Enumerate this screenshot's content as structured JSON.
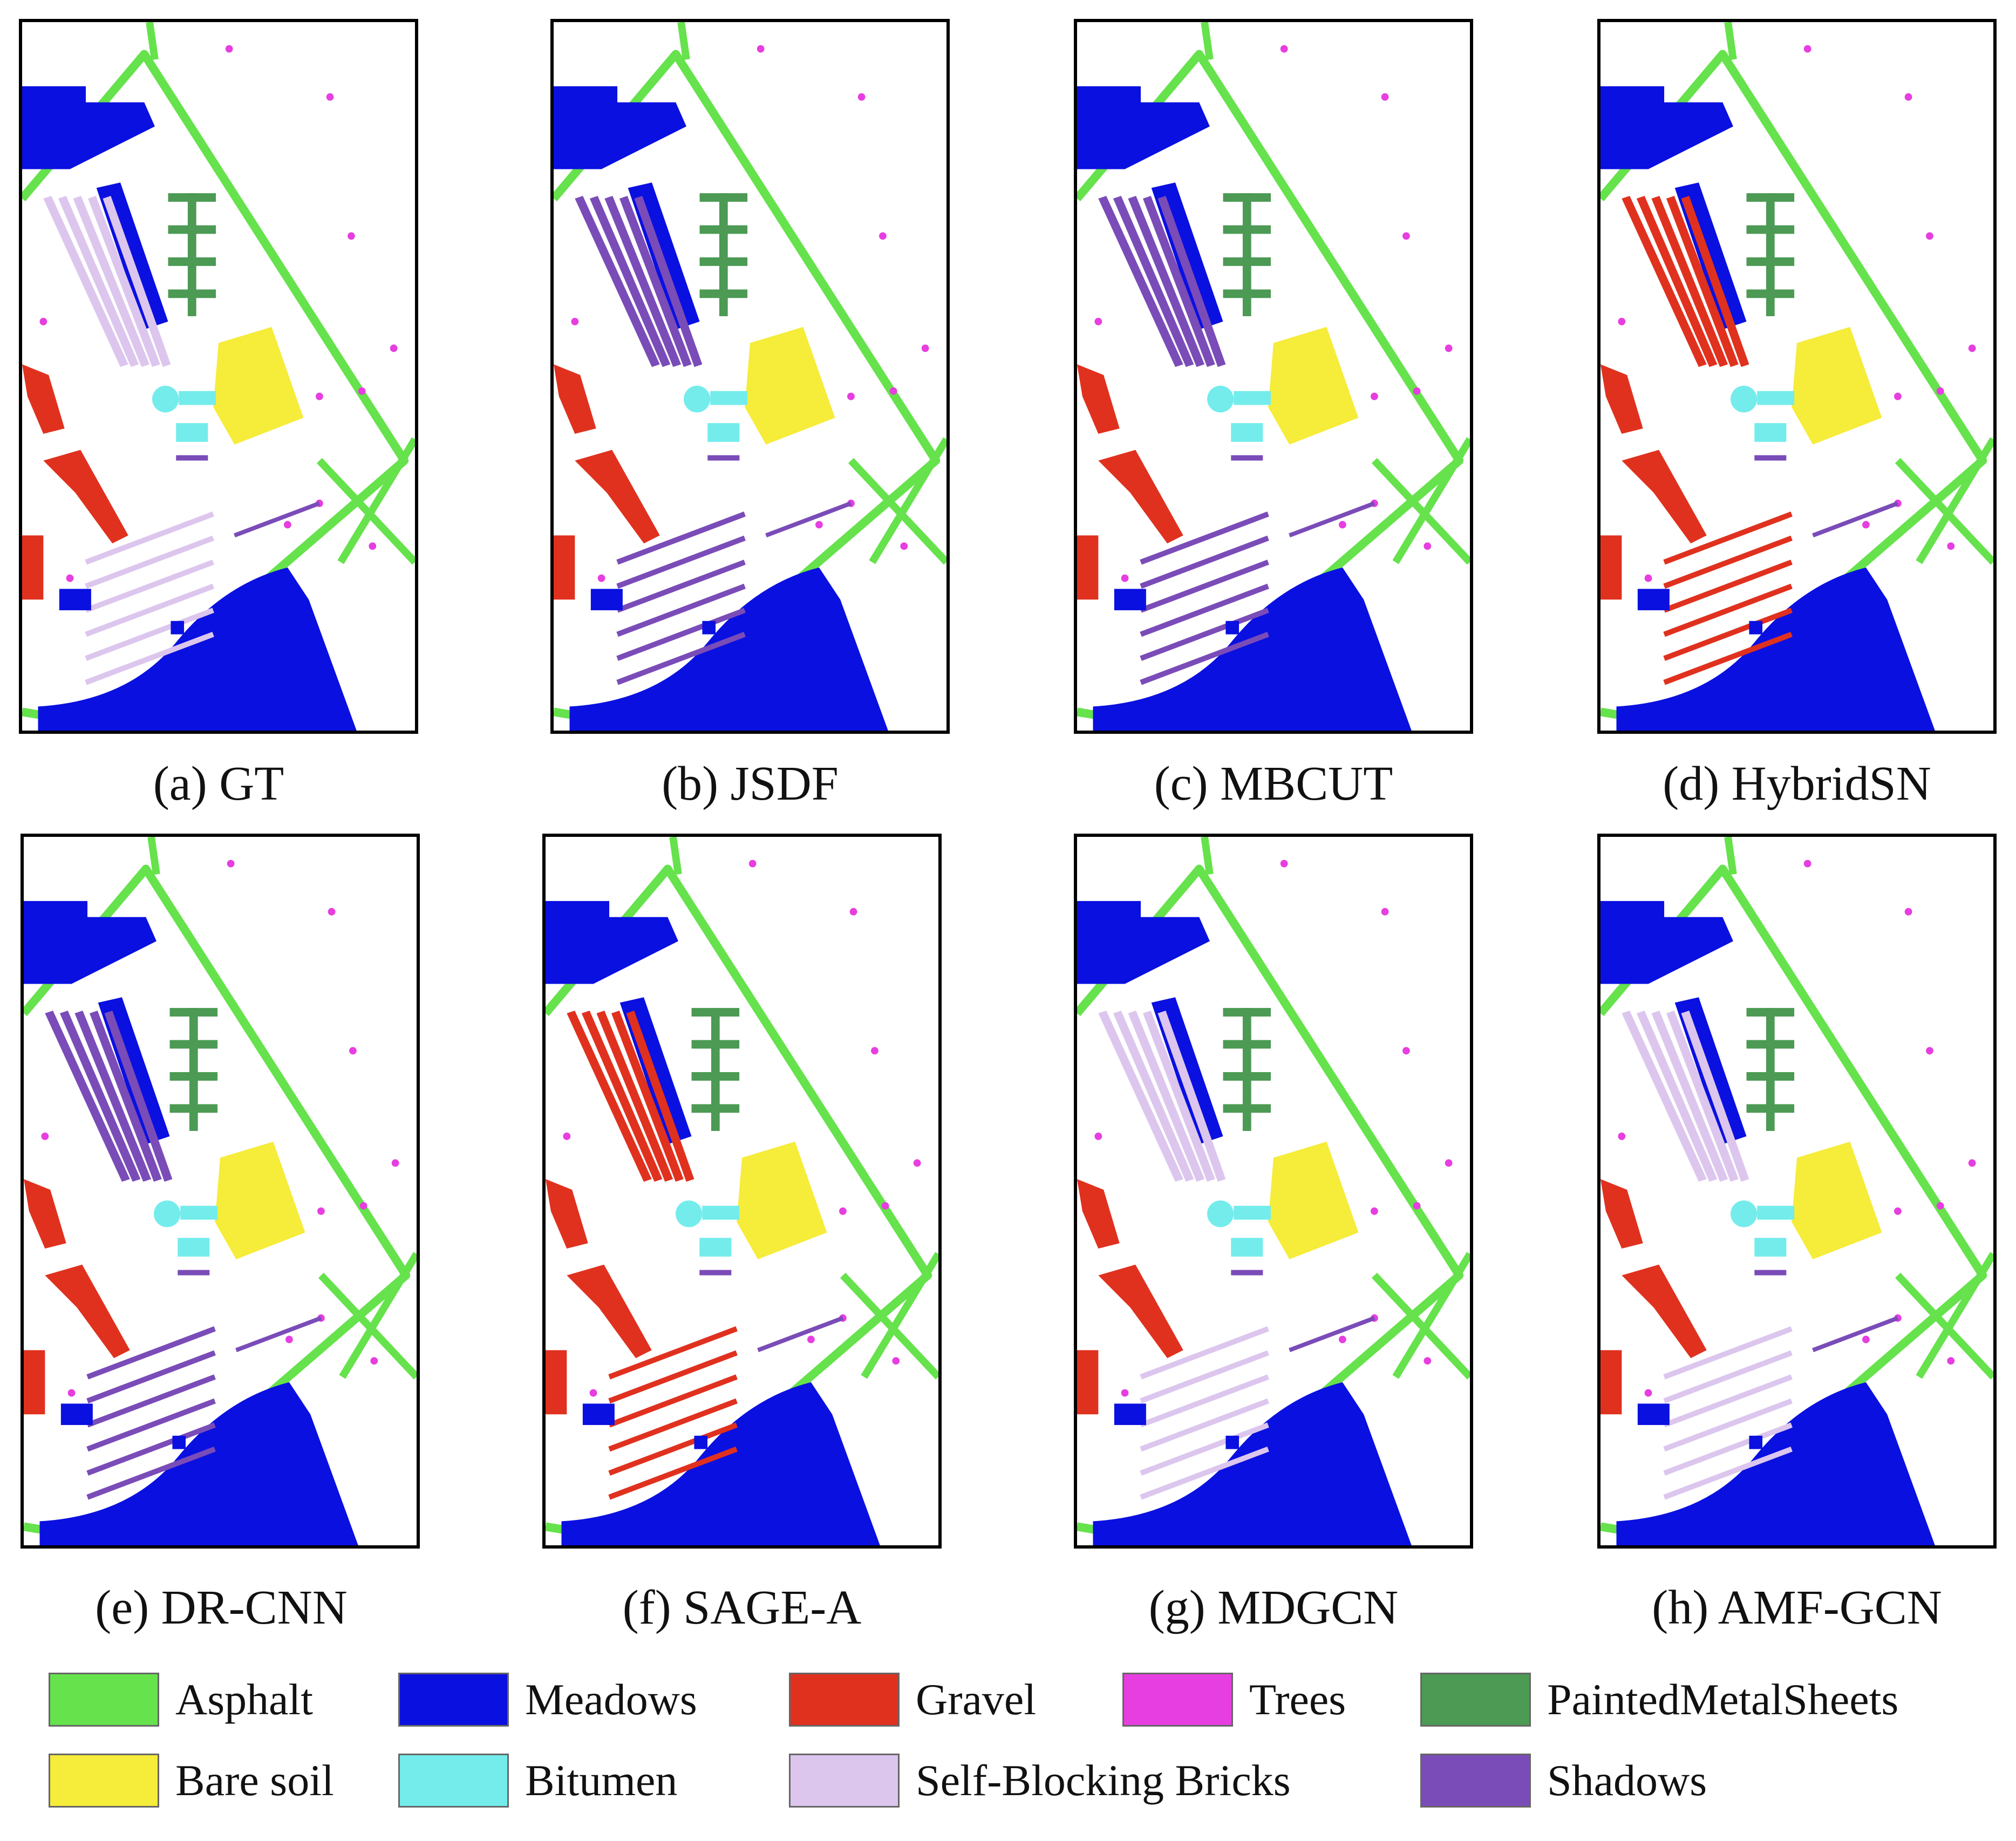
{
  "panels": [
    {
      "caption": "(a) GT"
    },
    {
      "caption": "(b) JSDF"
    },
    {
      "caption": "(c) MBCUT"
    },
    {
      "caption": "(d) HybridSN"
    },
    {
      "caption": "(e) DR-CNN"
    },
    {
      "caption": "(f) SAGE-A"
    },
    {
      "caption": "(g) MDGCN"
    },
    {
      "caption": "(h) AMF-GCN"
    }
  ],
  "legend": [
    {
      "label": "Asphalt",
      "color": "#66e24c"
    },
    {
      "label": "Meadows",
      "color": "#0a10e0"
    },
    {
      "label": "Gravel",
      "color": "#e0311f"
    },
    {
      "label": "Trees",
      "color": "#e63ee0"
    },
    {
      "label": "PaintedMetalSheets",
      "color": "#4c9a54"
    },
    {
      "label": "Bare soil",
      "color": "#f6ec3a"
    },
    {
      "label": "Bitumen",
      "color": "#74ecec"
    },
    {
      "label": "Self-Blocking Bricks",
      "color": "#dcc6ee"
    },
    {
      "label": "Shadows",
      "color": "#7a4cb8"
    }
  ]
}
